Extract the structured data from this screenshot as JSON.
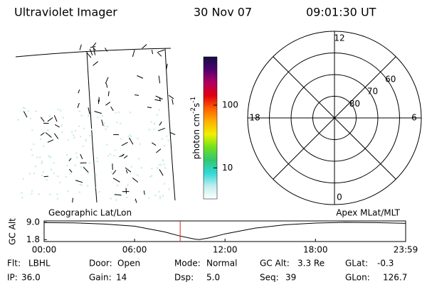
{
  "header": {
    "title": "Ultraviolet Imager",
    "date": "30 Nov 07",
    "time": "09:01:30 UT"
  },
  "colorbar": {
    "label": {
      "text": "photon cm",
      "exp1": "-2",
      "unit": "s",
      "exp2": "-1"
    },
    "scale": "log",
    "lim": [
      3.2,
      590
    ],
    "ticks": [
      10,
      100
    ],
    "colors": [
      "#ffffff",
      "#bfeeee",
      "#30d8d8",
      "#30c870",
      "#70e020",
      "#f0f000",
      "#ffb000",
      "#ff6000",
      "#e00010",
      "#b00060",
      "#500070",
      "#101040"
    ]
  },
  "polar": {
    "rlim": [
      90,
      50
    ],
    "rings": [
      80,
      70,
      60
    ],
    "mlt_ticks": [
      0,
      6,
      12,
      18
    ]
  },
  "altitude_plot": {
    "ylabel": "GC Alt",
    "left_title": "Geographic Lat/Lon",
    "right_title": "Apex MLat/MLT",
    "x": [
      0,
      2,
      4,
      6,
      8,
      9,
      10,
      10.3,
      11,
      12,
      14,
      16,
      18,
      20,
      22,
      23.983
    ],
    "values": [
      8.9,
      8.8,
      8.3,
      7.4,
      5.0,
      3.3,
      2.0,
      1.8,
      2.6,
      4.2,
      6.6,
      8.0,
      8.7,
      9.0,
      8.9,
      8.6
    ],
    "xlim": [
      0,
      23.983
    ],
    "xticks": [
      {
        "value": 0,
        "label": "00:00"
      },
      {
        "value": 6,
        "label": "06:00"
      },
      {
        "value": 12,
        "label": "12:00"
      },
      {
        "value": 18,
        "label": "18:00"
      },
      {
        "value": 23.983,
        "label": "23:59"
      }
    ],
    "ylim": [
      1.0,
      9.6
    ],
    "yticks": [
      {
        "value": 9,
        "label": "9.0"
      },
      1.8
    ],
    "color": "#000000",
    "marker_time": 9.025,
    "marker_color": "#e02020"
  },
  "status": [
    [
      {
        "label": "Flt:",
        "value": "LBHL"
      },
      {
        "label": "Door:",
        "value": "Open"
      },
      {
        "label": "Mode:",
        "value": "Normal"
      },
      {
        "label": "GC Alt:",
        "value": "3.3 Re"
      },
      {
        "label": "GLat:",
        "value": "-0.3"
      }
    ],
    [
      {
        "label": "IP:",
        "value": "36.0"
      },
      {
        "label": "Gain:",
        "value": "14"
      },
      {
        "label": "Dsp:",
        "value": "5.0"
      },
      {
        "label": "Seq:",
        "value": "39"
      },
      {
        "label": "GLon:",
        "value": "126.7"
      }
    ]
  ]
}
